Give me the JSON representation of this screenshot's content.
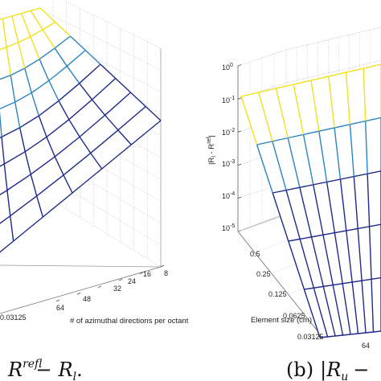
{
  "chart_data": [
    {
      "type": "surface",
      "panel": "a",
      "caption": {
        "rhs_symbol": "R",
        "rhs_superscript": "ref",
        "rhs_subscript": "l",
        "operator": "−",
        "tail": "R",
        "tail_subscript": "l",
        "end": "."
      },
      "xlabel": "# of azimuthal directions per octant",
      "x_ticks": [
        "64",
        "48",
        "32",
        "24",
        "16",
        "8"
      ],
      "y_ticks": [
        "0.03125"
      ],
      "surface_colors": [
        "#f2e11b",
        "#2b84c2",
        "#1f2a8a"
      ],
      "grid": true
    },
    {
      "type": "surface",
      "panel": "b",
      "caption": {
        "label": "(b)",
        "symbol": "R",
        "subscript": "u",
        "operator": "−"
      },
      "xlabel": "Element size (cm)",
      "ylabel": {
        "symbol": "|R",
        "subscript": "l",
        "middle": " - R",
        "superscript": "ref",
        "end": "|"
      },
      "x_ticks": [
        "0.5",
        "0.25",
        "0.125",
        "0.0625",
        "0.03125"
      ],
      "y_ticks": [
        "64"
      ],
      "z_scale": "log",
      "zlim": [
        1e-05,
        1
      ],
      "z_ticks": [
        {
          "base": "10",
          "exp": "0",
          "value": 1
        },
        {
          "base": "10",
          "exp": "-1",
          "value": 0.1
        },
        {
          "base": "10",
          "exp": "-2",
          "value": 0.01
        },
        {
          "base": "10",
          "exp": "-3",
          "value": 0.001
        },
        {
          "base": "10",
          "exp": "-4",
          "value": 0.0001
        },
        {
          "base": "10",
          "exp": "-5",
          "value": 1e-05
        }
      ],
      "surface_colors": [
        "#f2e11b",
        "#2b84c2",
        "#1f2a8a"
      ],
      "grid": true
    }
  ]
}
